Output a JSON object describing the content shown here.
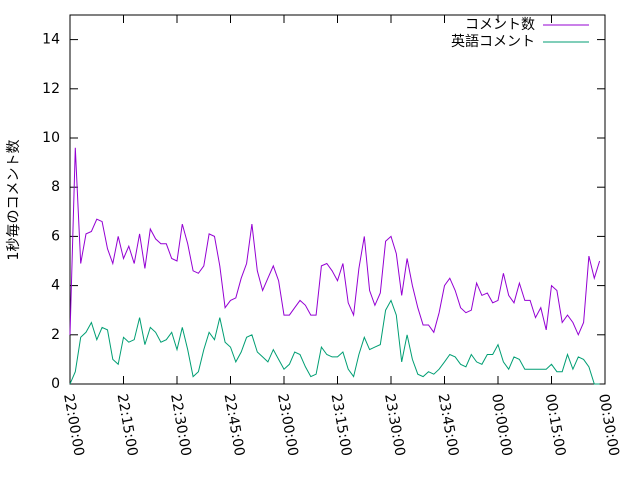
{
  "chart_data": {
    "type": "line",
    "ylabel": "1秒毎のコメント数",
    "legend": "upper right",
    "x": [
      "22:00:00",
      "22:01:30",
      "22:03:00",
      "22:04:30",
      "22:06:00",
      "22:07:30",
      "22:09:00",
      "22:10:30",
      "22:12:00",
      "22:13:30",
      "22:15:00",
      "22:16:30",
      "22:18:00",
      "22:19:30",
      "22:21:00",
      "22:22:30",
      "22:24:00",
      "22:25:30",
      "22:27:00",
      "22:28:30",
      "22:30:00",
      "22:31:30",
      "22:33:00",
      "22:34:30",
      "22:36:00",
      "22:37:30",
      "22:39:00",
      "22:40:30",
      "22:42:00",
      "22:43:30",
      "22:45:00",
      "22:46:30",
      "22:48:00",
      "22:49:30",
      "22:51:00",
      "22:52:30",
      "22:54:00",
      "22:55:30",
      "22:57:00",
      "22:58:30",
      "23:00:00",
      "23:01:30",
      "23:03:00",
      "23:04:30",
      "23:06:00",
      "23:07:30",
      "23:09:00",
      "23:10:30",
      "23:12:00",
      "23:13:30",
      "23:15:00",
      "23:16:30",
      "23:18:00",
      "23:19:30",
      "23:21:00",
      "23:22:30",
      "23:24:00",
      "23:25:30",
      "23:27:00",
      "23:28:30",
      "23:30:00",
      "23:31:30",
      "23:33:00",
      "23:34:30",
      "23:36:00",
      "23:37:30",
      "23:39:00",
      "23:40:30",
      "23:42:00",
      "23:43:30",
      "23:45:00",
      "23:46:30",
      "23:48:00",
      "23:49:30",
      "23:51:00",
      "23:52:30",
      "23:54:00",
      "23:55:30",
      "23:57:00",
      "23:58:30",
      "00:00:00",
      "00:01:30",
      "00:03:00",
      "00:04:30",
      "00:06:00",
      "00:07:30",
      "00:09:00",
      "00:10:30",
      "00:12:00",
      "00:13:30",
      "00:15:00",
      "00:16:30",
      "00:18:00",
      "00:19:30",
      "00:21:00",
      "00:22:30",
      "00:24:00",
      "00:25:30",
      "00:27:00",
      "00:28:30"
    ],
    "series": [
      {
        "name": "コメント数",
        "color": "#9400d3",
        "values": [
          2,
          9.6,
          4.9,
          6.1,
          6.2,
          6.7,
          6.6,
          5.5,
          4.9,
          6.0,
          5.1,
          5.6,
          4.9,
          6.1,
          4.7,
          6.3,
          5.9,
          5.7,
          5.7,
          5.1,
          5.0,
          6.5,
          5.7,
          4.6,
          4.5,
          4.8,
          6.1,
          6.0,
          4.8,
          3.1,
          3.4,
          3.5,
          4.3,
          4.9,
          6.5,
          4.6,
          3.8,
          4.3,
          4.8,
          4.2,
          2.8,
          2.8,
          3.1,
          3.4,
          3.2,
          2.8,
          2.8,
          4.8,
          4.9,
          4.6,
          4.2,
          4.9,
          3.3,
          2.8,
          4.7,
          6.0,
          3.8,
          3.2,
          3.7,
          5.8,
          6.0,
          5.3,
          3.6,
          5.1,
          4.0,
          3.1,
          2.4,
          2.4,
          2.1,
          2.9,
          4.0,
          4.3,
          3.8,
          3.1,
          2.9,
          3.0,
          4.1,
          3.6,
          3.7,
          3.3,
          3.4,
          4.5,
          3.6,
          3.3,
          4.1,
          3.4,
          3.4,
          2.7,
          3.1,
          2.2,
          4.0,
          3.8,
          2.5,
          2.8,
          2.5,
          2.0,
          2.5,
          5.2,
          4.3,
          5.0
        ]
      },
      {
        "name": "英語コメント",
        "color": "#009e73",
        "values": [
          0,
          0.5,
          1.9,
          2.1,
          2.5,
          1.8,
          2.3,
          2.2,
          1.0,
          0.8,
          1.9,
          1.7,
          1.8,
          2.7,
          1.6,
          2.3,
          2.1,
          1.7,
          1.8,
          2.1,
          1.4,
          2.3,
          1.4,
          0.3,
          0.5,
          1.4,
          2.1,
          1.8,
          2.7,
          1.7,
          1.5,
          0.9,
          1.3,
          1.9,
          2.0,
          1.3,
          1.1,
          0.9,
          1.4,
          1.0,
          0.6,
          0.8,
          1.3,
          1.2,
          0.7,
          0.3,
          0.4,
          1.5,
          1.2,
          1.1,
          1.1,
          1.3,
          0.6,
          0.3,
          1.2,
          1.9,
          1.4,
          1.5,
          1.6,
          3.0,
          3.4,
          2.8,
          0.9,
          2.0,
          1.0,
          0.4,
          0.3,
          0.5,
          0.4,
          0.6,
          0.9,
          1.2,
          1.1,
          0.8,
          0.7,
          1.2,
          0.9,
          0.8,
          1.2,
          1.2,
          1.6,
          0.9,
          0.6,
          1.1,
          1.0,
          0.6,
          0.6,
          0.6,
          0.6,
          0.6,
          0.8,
          0.5,
          0.5,
          1.2,
          0.6,
          1.1,
          1.0,
          0.7,
          0,
          0
        ]
      }
    ],
    "xlim": [
      "22:00:00",
      "00:30:00"
    ],
    "xticks": [
      "22:00:00",
      "22:15:00",
      "22:30:00",
      "22:45:00",
      "23:00:00",
      "23:15:00",
      "23:30:00",
      "23:45:00",
      "00:00:00",
      "00:15:00",
      "00:30:00"
    ],
    "ylim": [
      0,
      15
    ],
    "yticks": [
      0,
      2,
      4,
      6,
      8,
      10,
      12,
      14
    ]
  }
}
